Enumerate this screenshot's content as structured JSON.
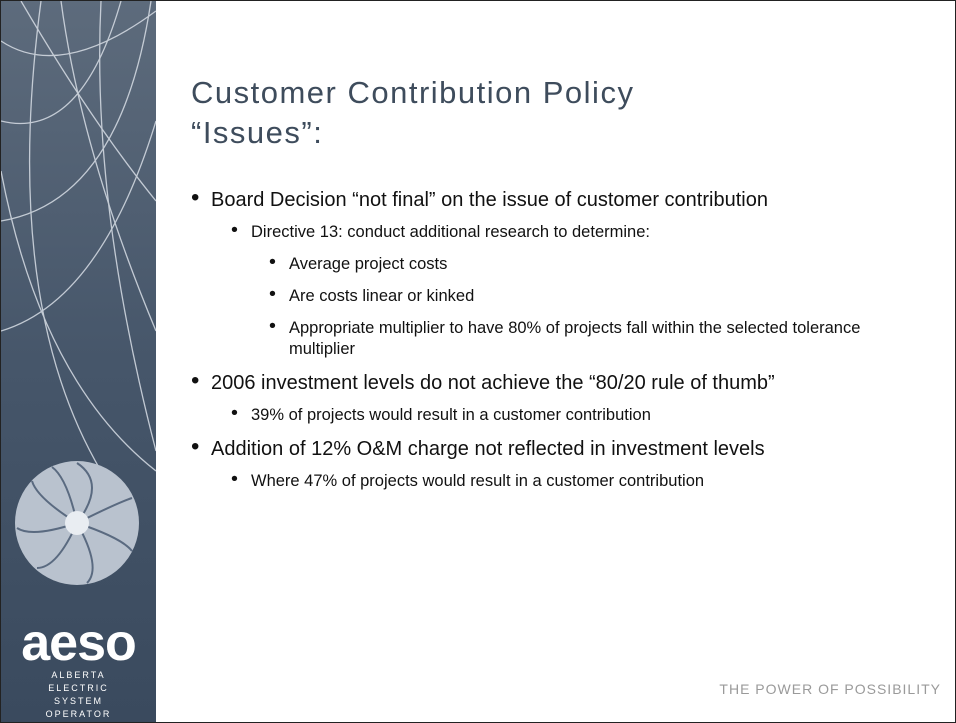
{
  "sidebar": {
    "logo": "aeso",
    "org_lines": [
      "ALBERTA",
      "ELECTRIC",
      "SYSTEM",
      "OPERATOR"
    ]
  },
  "slide": {
    "title_lines": [
      "Customer Contribution Policy",
      "“Issues”:"
    ],
    "bullets": [
      {
        "text": "Board Decision “not final” on the issue of customer contribution",
        "items": [
          {
            "text": "Directive 13: conduct additional research to determine:",
            "items": [
              {
                "text": "Average project costs"
              },
              {
                "text": "Are costs linear or kinked"
              },
              {
                "text": "Appropriate multiplier to have 80% of projects fall within the selected tolerance multiplier"
              }
            ]
          }
        ]
      },
      {
        "text": "2006 investment levels do not achieve the “80/20 rule of thumb”",
        "items": [
          {
            "text": "39% of projects would result in a customer contribution"
          }
        ]
      },
      {
        "text": "Addition of 12% O&M charge not reflected in investment levels",
        "items": [
          {
            "text": "Where 47% of projects would result in a customer contribution"
          }
        ]
      }
    ]
  },
  "footer": "THE POWER OF POSSIBILITY"
}
